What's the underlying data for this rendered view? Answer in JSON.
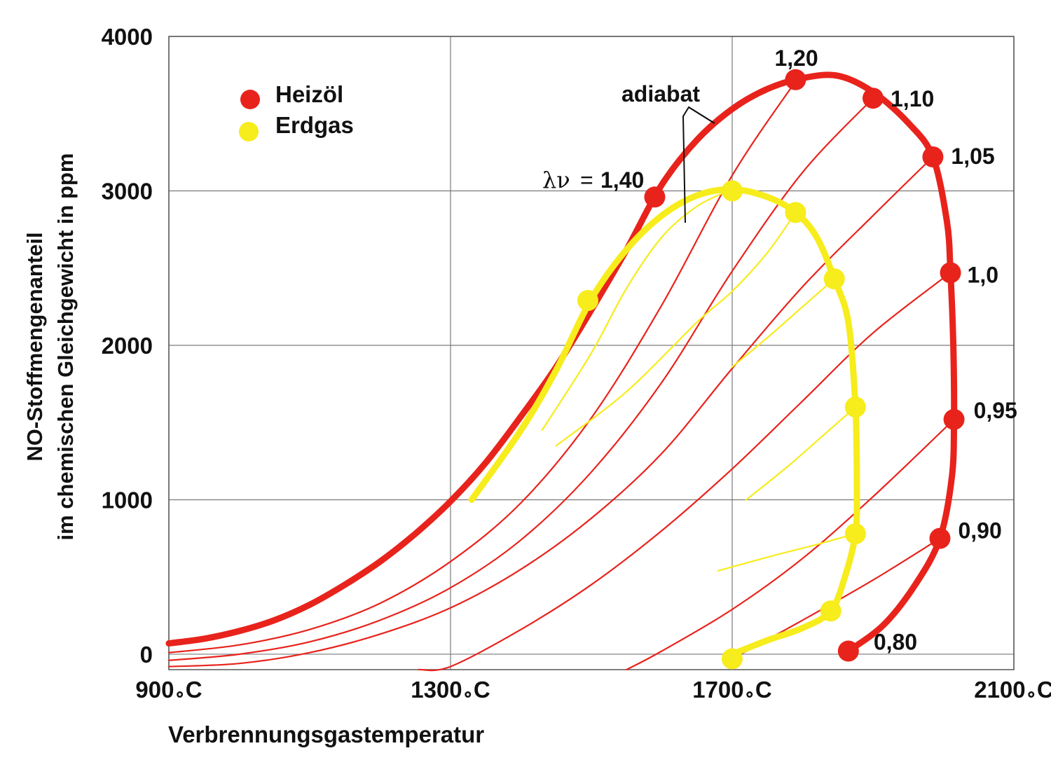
{
  "chart_data": {
    "type": "line",
    "title": "",
    "xlabel": "Verbrennungsgastemperatur",
    "ylabel_lines": [
      "NO-Stoffmengenanteil",
      "im chemischen Gleichgewicht in ppm"
    ],
    "xlim": [
      900,
      2100
    ],
    "ylim": [
      -100,
      4000
    ],
    "x_ticks": [
      900,
      1300,
      1700,
      2100
    ],
    "x_tick_labels": [
      "900",
      "1300",
      "1700",
      "2100"
    ],
    "x_unit_degree": "∘",
    "x_unit_letter": "C",
    "y_ticks": [
      0,
      1000,
      2000,
      3000,
      4000
    ],
    "y_tick_labels": [
      "0",
      "1000",
      "2000",
      "3000",
      "4000"
    ],
    "grid": true,
    "legend": {
      "placement": "top-left",
      "entries": [
        {
          "name": "Heizöl",
          "color": "#e8231c"
        },
        {
          "name": "Erdgas",
          "color": "#f7ec1c"
        }
      ]
    },
    "annotations": {
      "adiabat": "adiabat",
      "lambda_symbol": "λν",
      "lambda_equals": "=",
      "lambda_value": "1,40"
    },
    "colors": {
      "heizoel": "#e8231c",
      "erdgas": "#f7ec1c",
      "grid": "#7a7a7a"
    },
    "lambda_labels": [
      {
        "label": "1,20",
        "x": 1790,
        "y": 3710
      },
      {
        "label": "1,10",
        "x": 1900,
        "y": 3600
      },
      {
        "label": "1,05",
        "x": 1985,
        "y": 3220
      },
      {
        "label": "1,0",
        "x": 2010,
        "y": 2460
      },
      {
        "label": "0,95",
        "x": 2015,
        "y": 1520
      },
      {
        "label": "0,90",
        "x": 1995,
        "y": 750
      },
      {
        "label": "0,80",
        "x": 1865,
        "y": 20
      }
    ],
    "series": [
      {
        "name": "Heizöl",
        "role": "adiabatic-envelope",
        "color": "#e8231c",
        "points": [
          [
            900,
            70
          ],
          [
            950,
            100
          ],
          [
            1000,
            150
          ],
          [
            1050,
            220
          ],
          [
            1100,
            320
          ],
          [
            1150,
            450
          ],
          [
            1200,
            600
          ],
          [
            1250,
            780
          ],
          [
            1300,
            990
          ],
          [
            1350,
            1240
          ],
          [
            1400,
            1540
          ],
          [
            1450,
            1860
          ],
          [
            1500,
            2230
          ],
          [
            1550,
            2620
          ],
          [
            1600,
            3040
          ],
          [
            1650,
            3330
          ],
          [
            1700,
            3530
          ],
          [
            1750,
            3660
          ],
          [
            1800,
            3730
          ],
          [
            1850,
            3745
          ],
          [
            1900,
            3640
          ],
          [
            1950,
            3440
          ],
          [
            1985,
            3220
          ],
          [
            2005,
            2800
          ],
          [
            2010,
            2470
          ],
          [
            2014,
            2000
          ],
          [
            2015,
            1520
          ],
          [
            2012,
            1150
          ],
          [
            1995,
            750
          ],
          [
            1960,
            450
          ],
          [
            1915,
            190
          ],
          [
            1865,
            20
          ]
        ]
      },
      {
        "name": "Heizöl",
        "role": "isoline",
        "color": "#e8231c",
        "points": [
          [
            900,
            10
          ],
          [
            1000,
            60
          ],
          [
            1100,
            160
          ],
          [
            1200,
            330
          ],
          [
            1300,
            600
          ],
          [
            1400,
            980
          ],
          [
            1500,
            1530
          ],
          [
            1600,
            2260
          ],
          [
            1700,
            3100
          ],
          [
            1790,
            3710
          ]
        ]
      },
      {
        "name": "Heizöl",
        "role": "isoline",
        "color": "#e8231c",
        "points": [
          [
            900,
            -40
          ],
          [
            1000,
            0
          ],
          [
            1100,
            80
          ],
          [
            1200,
            220
          ],
          [
            1300,
            430
          ],
          [
            1400,
            740
          ],
          [
            1500,
            1180
          ],
          [
            1600,
            1760
          ],
          [
            1700,
            2480
          ],
          [
            1800,
            3120
          ],
          [
            1900,
            3600
          ]
        ]
      },
      {
        "name": "Heizöl",
        "role": "isoline",
        "color": "#e8231c",
        "points": [
          [
            900,
            -80
          ],
          [
            1000,
            -60
          ],
          [
            1100,
            10
          ],
          [
            1200,
            130
          ],
          [
            1300,
            300
          ],
          [
            1400,
            550
          ],
          [
            1500,
            880
          ],
          [
            1600,
            1300
          ],
          [
            1700,
            1850
          ],
          [
            1800,
            2380
          ],
          [
            1900,
            2840
          ],
          [
            1985,
            3220
          ]
        ]
      },
      {
        "name": "Heizöl",
        "role": "isoline",
        "color": "#e8231c",
        "points": [
          [
            1255,
            -100
          ],
          [
            1300,
            -80
          ],
          [
            1400,
            160
          ],
          [
            1500,
            450
          ],
          [
            1600,
            800
          ],
          [
            1700,
            1200
          ],
          [
            1800,
            1640
          ],
          [
            1900,
            2080
          ],
          [
            2010,
            2470
          ]
        ]
      },
      {
        "name": "Heizöl",
        "role": "isoline",
        "color": "#e8231c",
        "points": [
          [
            1550,
            -100
          ],
          [
            1600,
            20
          ],
          [
            1700,
            290
          ],
          [
            1800,
            620
          ],
          [
            1900,
            1020
          ],
          [
            2015,
            1520
          ]
        ]
      },
      {
        "name": "Heizöl",
        "role": "isoline",
        "color": "#e8231c",
        "points": [
          [
            1700,
            -30
          ],
          [
            1800,
            220
          ],
          [
            1900,
            480
          ],
          [
            1995,
            750
          ]
        ]
      },
      {
        "name": "Erdgas",
        "role": "adiabatic-envelope",
        "color": "#f7ec1c",
        "points": [
          [
            1330,
            1000
          ],
          [
            1400,
            1450
          ],
          [
            1450,
            1840
          ],
          [
            1500,
            2300
          ],
          [
            1550,
            2620
          ],
          [
            1600,
            2840
          ],
          [
            1650,
            2970
          ],
          [
            1700,
            3010
          ],
          [
            1750,
            2960
          ],
          [
            1790,
            2860
          ],
          [
            1820,
            2700
          ],
          [
            1845,
            2430
          ],
          [
            1865,
            2150
          ],
          [
            1875,
            1600
          ],
          [
            1877,
            1100
          ],
          [
            1875,
            780
          ],
          [
            1860,
            500
          ],
          [
            1840,
            280
          ],
          [
            1800,
            170
          ],
          [
            1750,
            90
          ],
          [
            1700,
            0
          ]
        ]
      },
      {
        "name": "Erdgas",
        "role": "isoline",
        "color": "#f7ec1c",
        "points": [
          [
            1430,
            1450
          ],
          [
            1500,
            1950
          ],
          [
            1550,
            2370
          ],
          [
            1600,
            2700
          ],
          [
            1650,
            2900
          ],
          [
            1700,
            3010
          ]
        ]
      },
      {
        "name": "Erdgas",
        "role": "isoline",
        "color": "#f7ec1c",
        "points": [
          [
            1450,
            1350
          ],
          [
            1550,
            1700
          ],
          [
            1650,
            2150
          ],
          [
            1700,
            2350
          ],
          [
            1750,
            2600
          ],
          [
            1790,
            2860
          ]
        ]
      },
      {
        "name": "Erdgas",
        "role": "isoline",
        "color": "#f7ec1c",
        "points": [
          [
            1700,
            1860
          ],
          [
            1750,
            2050
          ],
          [
            1800,
            2250
          ],
          [
            1845,
            2430
          ]
        ]
      },
      {
        "name": "Erdgas",
        "role": "isoline",
        "color": "#f7ec1c",
        "points": [
          [
            1720,
            1000
          ],
          [
            1780,
            1220
          ],
          [
            1830,
            1420
          ],
          [
            1875,
            1600
          ]
        ]
      },
      {
        "name": "Erdgas",
        "role": "isoline",
        "color": "#f7ec1c",
        "points": [
          [
            1680,
            540
          ],
          [
            1760,
            640
          ],
          [
            1820,
            710
          ],
          [
            1875,
            780
          ]
        ]
      },
      {
        "name": "Erdgas",
        "role": "isoline",
        "color": "#f7ec1c",
        "points": [
          [
            1700,
            0
          ],
          [
            1750,
            90
          ],
          [
            1800,
            170
          ],
          [
            1840,
            280
          ]
        ]
      }
    ],
    "markers": [
      {
        "series": "Heizöl",
        "points": [
          [
            1590,
            2960
          ],
          [
            1790,
            3720
          ],
          [
            1900,
            3600
          ],
          [
            1985,
            3220
          ],
          [
            2010,
            2470
          ],
          [
            2015,
            1520
          ],
          [
            1995,
            750
          ],
          [
            1865,
            20
          ]
        ]
      },
      {
        "series": "Erdgas",
        "points": [
          [
            1495,
            2290
          ],
          [
            1700,
            3000
          ],
          [
            1790,
            2860
          ],
          [
            1845,
            2430
          ],
          [
            1875,
            1600
          ],
          [
            1875,
            780
          ],
          [
            1840,
            280
          ],
          [
            1700,
            -30
          ]
        ]
      }
    ]
  }
}
